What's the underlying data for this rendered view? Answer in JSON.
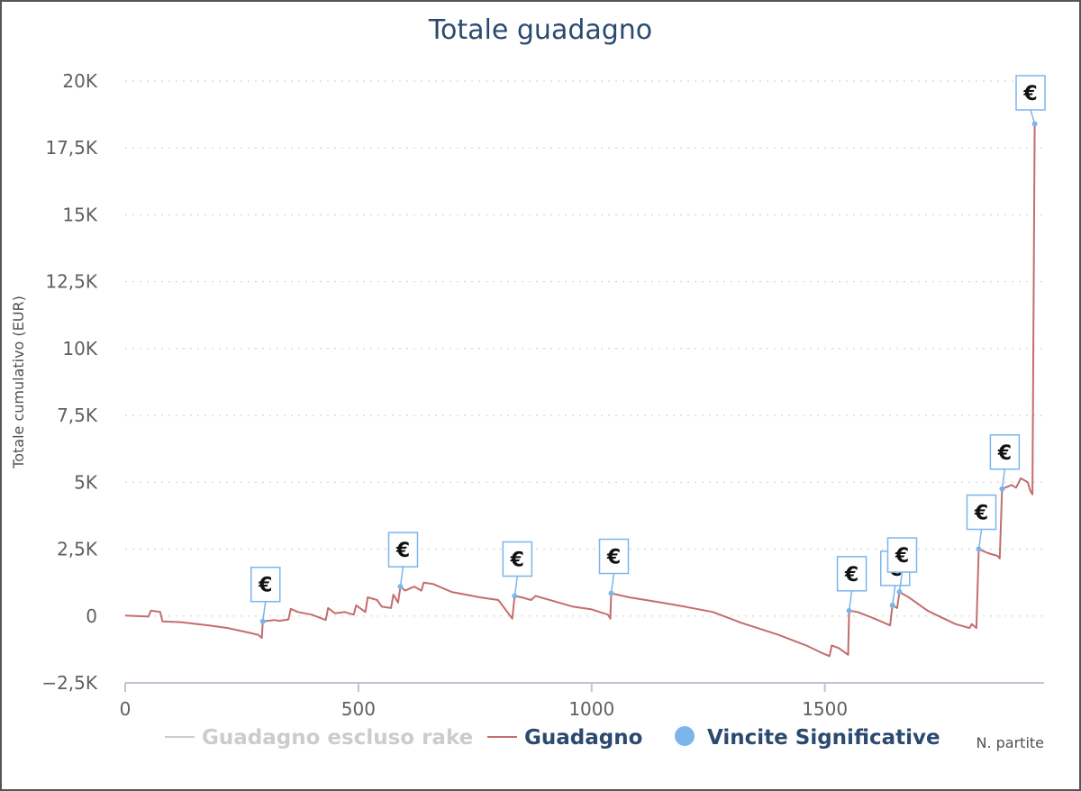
{
  "chart_data": {
    "type": "line",
    "title": "Totale guadagno",
    "xlabel": "N. partite",
    "ylabel": "Totale cumulativo (EUR)",
    "xlim": [
      0,
      1970
    ],
    "ylim": [
      -2500,
      20000
    ],
    "x_ticks": [
      0,
      500,
      1000,
      1500
    ],
    "x_tick_labels": [
      "0",
      "500",
      "1000",
      "1500"
    ],
    "y_ticks": [
      -2500,
      0,
      2500,
      5000,
      7500,
      10000,
      12500,
      15000,
      17500,
      20000
    ],
    "y_tick_labels": [
      "−2,5K",
      "0",
      "2,5K",
      "5K",
      "7,5K",
      "10K",
      "12,5K",
      "15K",
      "17,5K",
      "20K"
    ],
    "grid": true,
    "legend_position": "bottom",
    "colors": {
      "guadagno": "#c46d6d",
      "escluso_rake": "#cccccc",
      "vincite": "#7cb5ec",
      "title": "#2b4a6f"
    },
    "series": [
      {
        "name": "Guadagno escluso rake",
        "hidden": true,
        "points": []
      },
      {
        "name": "Guadagno",
        "points": [
          [
            0,
            20
          ],
          [
            50,
            -20
          ],
          [
            55,
            200
          ],
          [
            75,
            150
          ],
          [
            80,
            -200
          ],
          [
            120,
            -230
          ],
          [
            180,
            -350
          ],
          [
            220,
            -450
          ],
          [
            260,
            -600
          ],
          [
            285,
            -700
          ],
          [
            293,
            -820
          ],
          [
            295,
            -200
          ],
          [
            320,
            -150
          ],
          [
            330,
            -180
          ],
          [
            350,
            -130
          ],
          [
            355,
            270
          ],
          [
            370,
            150
          ],
          [
            400,
            50
          ],
          [
            430,
            -150
          ],
          [
            435,
            300
          ],
          [
            450,
            100
          ],
          [
            470,
            150
          ],
          [
            490,
            50
          ],
          [
            495,
            400
          ],
          [
            515,
            150
          ],
          [
            520,
            700
          ],
          [
            540,
            600
          ],
          [
            550,
            350
          ],
          [
            570,
            300
          ],
          [
            575,
            800
          ],
          [
            585,
            500
          ],
          [
            590,
            1100
          ],
          [
            600,
            950
          ],
          [
            620,
            1100
          ],
          [
            635,
            950
          ],
          [
            640,
            1250
          ],
          [
            660,
            1200
          ],
          [
            700,
            900
          ],
          [
            730,
            800
          ],
          [
            760,
            700
          ],
          [
            800,
            600
          ],
          [
            830,
            -100
          ],
          [
            835,
            750
          ],
          [
            850,
            700
          ],
          [
            870,
            600
          ],
          [
            880,
            750
          ],
          [
            920,
            550
          ],
          [
            960,
            350
          ],
          [
            1000,
            250
          ],
          [
            1035,
            50
          ],
          [
            1040,
            -100
          ],
          [
            1042,
            850
          ],
          [
            1080,
            700
          ],
          [
            1150,
            500
          ],
          [
            1200,
            350
          ],
          [
            1260,
            150
          ],
          [
            1320,
            -250
          ],
          [
            1400,
            -700
          ],
          [
            1460,
            -1100
          ],
          [
            1490,
            -1350
          ],
          [
            1510,
            -1500
          ],
          [
            1515,
            -1100
          ],
          [
            1530,
            -1200
          ],
          [
            1550,
            -1450
          ],
          [
            1552,
            200
          ],
          [
            1570,
            150
          ],
          [
            1600,
            -50
          ],
          [
            1620,
            -200
          ],
          [
            1640,
            -350
          ],
          [
            1645,
            400
          ],
          [
            1655,
            300
          ],
          [
            1660,
            900
          ],
          [
            1680,
            700
          ],
          [
            1720,
            200
          ],
          [
            1750,
            -50
          ],
          [
            1780,
            -300
          ],
          [
            1810,
            -450
          ],
          [
            1815,
            -300
          ],
          [
            1825,
            -450
          ],
          [
            1830,
            2500
          ],
          [
            1850,
            2350
          ],
          [
            1870,
            2250
          ],
          [
            1875,
            2150
          ],
          [
            1880,
            4750
          ],
          [
            1900,
            4900
          ],
          [
            1910,
            4800
          ],
          [
            1920,
            5150
          ],
          [
            1935,
            5000
          ],
          [
            1940,
            4700
          ],
          [
            1945,
            4550
          ],
          [
            1950,
            18400
          ]
        ]
      },
      {
        "name": "Vincite Significative",
        "flag_label": "€",
        "points": [
          [
            295,
            -200
          ],
          [
            590,
            1100
          ],
          [
            835,
            750
          ],
          [
            1042,
            850
          ],
          [
            1552,
            200
          ],
          [
            1645,
            400
          ],
          [
            1660,
            900
          ],
          [
            1830,
            2500
          ],
          [
            1880,
            4750
          ],
          [
            1950,
            18400
          ]
        ]
      }
    ]
  }
}
